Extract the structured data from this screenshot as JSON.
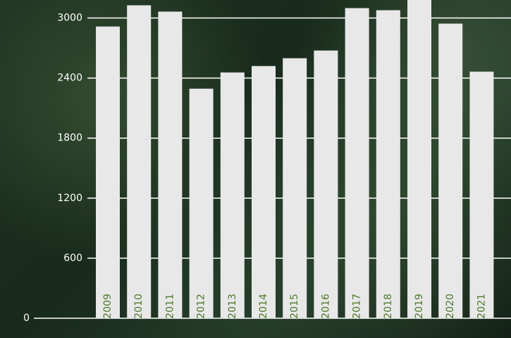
{
  "chart_data": {
    "type": "bar",
    "categories": [
      "2009",
      "2010",
      "2011",
      "2012",
      "2013",
      "2014",
      "2015",
      "2016",
      "2017",
      "2018",
      "2019",
      "2020",
      "2021"
    ],
    "values": [
      2915,
      3127,
      3064,
      2294,
      2456,
      2520,
      2598,
      2675,
      3099,
      3078,
      3200,
      2944,
      2464
    ],
    "color": "#e8e8e8",
    "label_color": "#4f7a2c",
    "grid_color": "#ffffff",
    "ylim": [
      0,
      3180
    ],
    "yticks": [
      0,
      600,
      1200,
      1800,
      2400,
      3000
    ],
    "grid": true
  }
}
